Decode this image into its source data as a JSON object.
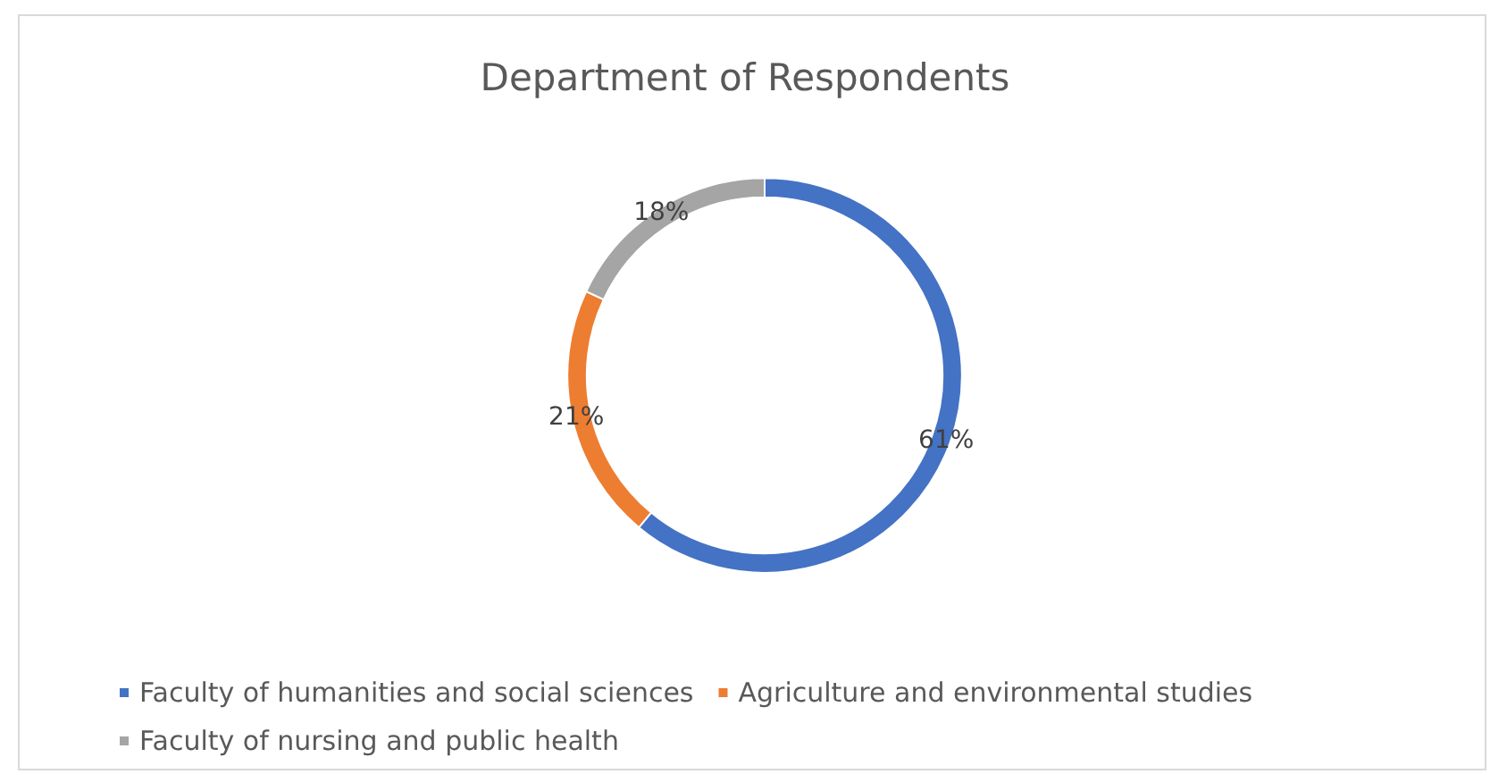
{
  "chart_data": {
    "type": "donut",
    "title": "Department of Respondents",
    "categories": [
      "Faculty of humanities and social sciences",
      "Agriculture and environmental studies",
      "Faculty of nursing and public health"
    ],
    "values": [
      61,
      21,
      18
    ],
    "value_labels": [
      "61%",
      "21%",
      "18%"
    ],
    "colors": [
      "#4472c4",
      "#ed7d31",
      "#a5a5a5"
    ],
    "legend": "bottom"
  }
}
